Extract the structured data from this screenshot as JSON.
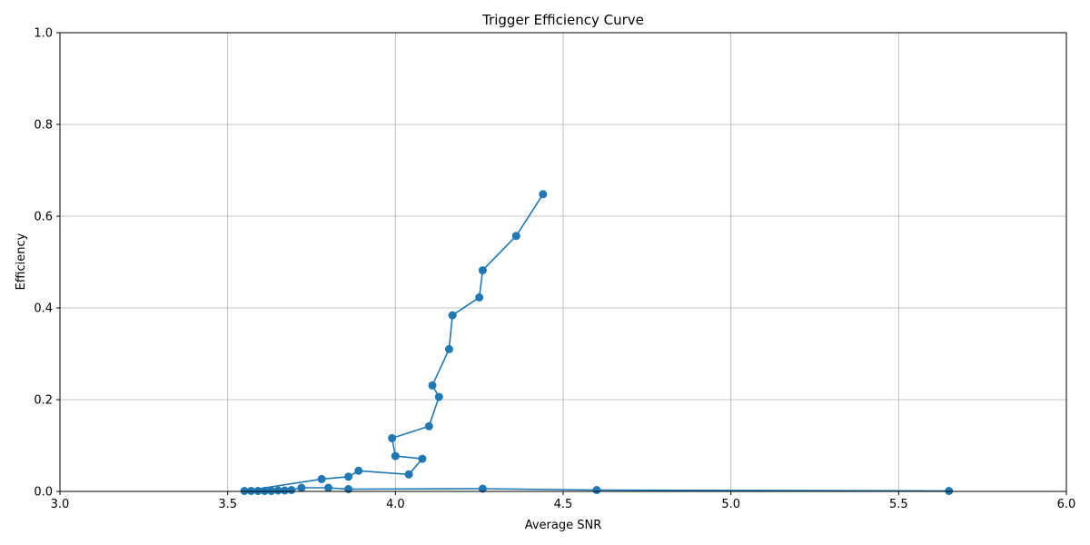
{
  "colors": {
    "series": "#1f77b4",
    "grid": "#b0b0b0",
    "background": "#ffffff"
  },
  "chart_data": {
    "type": "line",
    "title": "Trigger Efficiency Curve",
    "xlabel": "Average SNR",
    "ylabel": "Efficiency",
    "xlim": [
      3.0,
      6.0
    ],
    "ylim": [
      0.0,
      1.0
    ],
    "xticks": [
      "3.0",
      "3.5",
      "4.0",
      "4.5",
      "5.0",
      "5.5",
      "6.0"
    ],
    "yticks": [
      "0.0",
      "0.2",
      "0.4",
      "0.6",
      "0.8",
      "1.0"
    ],
    "grid": true,
    "marker": "circle",
    "series": [
      {
        "x": [
          5.65,
          4.6,
          4.26,
          3.86,
          3.8,
          3.72,
          3.69,
          3.67,
          3.65,
          3.63,
          3.61,
          3.59,
          3.57,
          3.55,
          3.78,
          3.86,
          3.89,
          4.04,
          4.08,
          4.0,
          3.99,
          4.1,
          4.13,
          4.11,
          4.16,
          4.17,
          4.25,
          4.26,
          4.36,
          4.44
        ],
        "y": [
          0.001,
          0.003,
          0.006,
          0.005,
          0.008,
          0.008,
          0.003,
          0.002,
          0.002,
          0.001,
          0.001,
          0.001,
          0.001,
          0.001,
          0.027,
          0.032,
          0.045,
          0.037,
          0.071,
          0.077,
          0.116,
          0.142,
          0.206,
          0.231,
          0.31,
          0.384,
          0.423,
          0.482,
          0.557,
          0.648
        ]
      }
    ]
  }
}
